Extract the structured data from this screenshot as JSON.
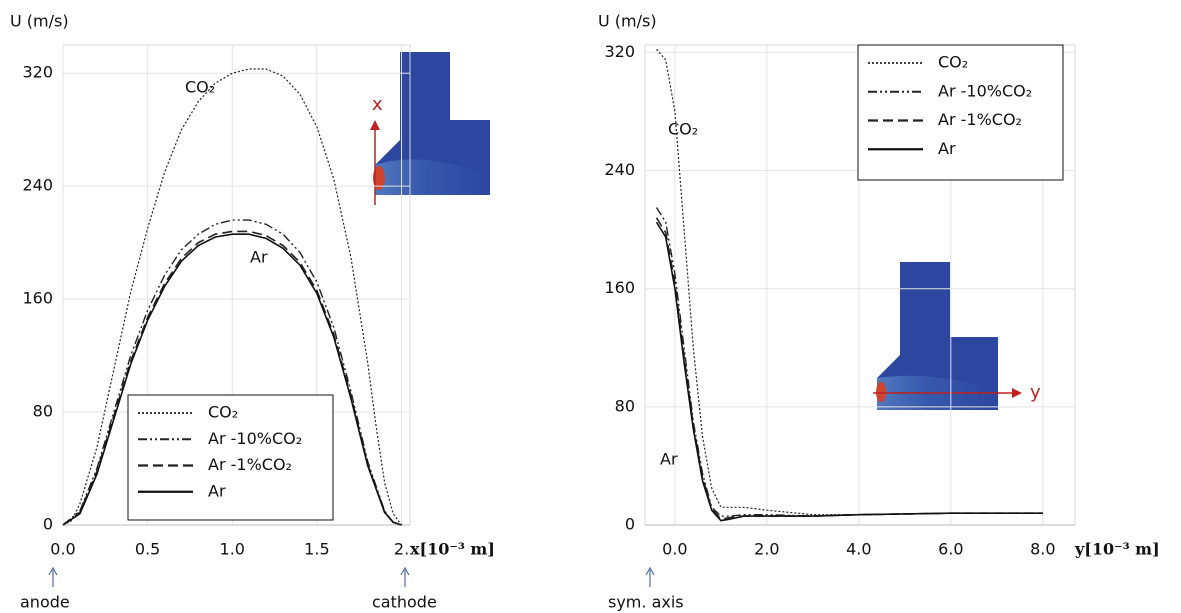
{
  "charts": [
    {
      "type": "line",
      "ylabel": "U (m/s)",
      "xlabel": "x[10⁻³ m]",
      "xlim": [
        0,
        2.05
      ],
      "ylim": [
        0,
        340
      ],
      "xticks": [
        {
          "value": 0,
          "label": "0.0"
        },
        0.5,
        {
          "value": 1,
          "label": "1.0"
        },
        1.5,
        {
          "value": 2,
          "label": "2."
        }
      ],
      "yticks": [
        0,
        80,
        160,
        240,
        320
      ],
      "grid": true,
      "legend": "lower center",
      "series": [
        {
          "name": "CO₂",
          "color": "#222222",
          "style": "dotted",
          "x": [
            0,
            0.05,
            0.1,
            0.2,
            0.3,
            0.4,
            0.5,
            0.6,
            0.7,
            0.8,
            0.9,
            1.0,
            1.1,
            1.2,
            1.3,
            1.4,
            1.5,
            1.6,
            1.7,
            1.8,
            1.85,
            1.9,
            1.95,
            2.0
          ],
          "values": [
            0,
            3,
            15,
            55,
            110,
            165,
            210,
            250,
            280,
            300,
            313,
            320,
            323,
            323,
            318,
            305,
            282,
            245,
            190,
            115,
            70,
            30,
            8,
            0
          ]
        },
        {
          "name": "Ar -10%CO₂",
          "color": "#222222",
          "style": "dashdot",
          "x": [
            0,
            0.1,
            0.2,
            0.3,
            0.4,
            0.5,
            0.6,
            0.7,
            0.8,
            0.9,
            1.0,
            1.1,
            1.2,
            1.3,
            1.4,
            1.5,
            1.6,
            1.7,
            1.8,
            1.9,
            1.95,
            2.0
          ],
          "values": [
            0,
            10,
            40,
            80,
            120,
            152,
            177,
            195,
            206,
            213,
            216,
            216,
            213,
            206,
            193,
            172,
            140,
            95,
            45,
            10,
            2,
            0
          ]
        },
        {
          "name": "Ar -1%CO₂",
          "color": "#222222",
          "style": "dashed",
          "x": [
            0,
            0.1,
            0.2,
            0.3,
            0.4,
            0.5,
            0.6,
            0.7,
            0.8,
            0.9,
            1.0,
            1.1,
            1.2,
            1.3,
            1.4,
            1.5,
            1.6,
            1.7,
            1.8,
            1.9,
            1.95,
            2.0
          ],
          "values": [
            0,
            9,
            38,
            77,
            116,
            147,
            171,
            189,
            200,
            206,
            208,
            208,
            205,
            198,
            186,
            166,
            135,
            92,
            43,
            9,
            2,
            0
          ]
        },
        {
          "name": "Ar",
          "color": "#111111",
          "style": "solid",
          "x": [
            0,
            0.1,
            0.2,
            0.3,
            0.4,
            0.5,
            0.6,
            0.7,
            0.8,
            0.9,
            1.0,
            1.1,
            1.2,
            1.3,
            1.4,
            1.5,
            1.6,
            1.7,
            1.8,
            1.9,
            1.95,
            2.0
          ],
          "values": [
            0,
            8,
            36,
            75,
            114,
            145,
            169,
            187,
            198,
            204,
            206,
            206,
            203,
            196,
            184,
            164,
            133,
            90,
            42,
            9,
            2,
            0
          ]
        }
      ],
      "annotations": [
        "CO₂",
        "Ar",
        "anode",
        "cathode"
      ],
      "inset_axis": "x"
    },
    {
      "type": "line",
      "ylabel": "U (m/s)",
      "xlabel": "y[10⁻³ m]",
      "xlim": [
        -0.65,
        8.7
      ],
      "ylim": [
        0,
        325
      ],
      "xticks": [
        {
          "value": 0,
          "label": "0.0"
        },
        {
          "value": 2,
          "label": "2.0"
        },
        {
          "value": 4,
          "label": "4.0"
        },
        {
          "value": 6,
          "label": "6.0"
        },
        {
          "value": 8,
          "label": "8.0"
        }
      ],
      "yticks": [
        0,
        80,
        160,
        240,
        320
      ],
      "grid": true,
      "legend": "upper right",
      "series": [
        {
          "name": "CO₂",
          "color": "#222222",
          "style": "dotted",
          "x": [
            -0.4,
            -0.2,
            0,
            0.2,
            0.4,
            0.6,
            0.8,
            1.0,
            1.5,
            2.0,
            3.0,
            4.0,
            6.0,
            8.0
          ],
          "values": [
            322,
            315,
            280,
            200,
            120,
            60,
            25,
            12,
            12,
            10,
            7,
            7,
            8,
            8
          ]
        },
        {
          "name": "Ar -10%CO₂",
          "color": "#222222",
          "style": "dashdot",
          "x": [
            -0.4,
            -0.2,
            0,
            0.2,
            0.4,
            0.6,
            0.8,
            1.0,
            1.2,
            1.5,
            2.0,
            3.0,
            4.0,
            6.0,
            8.0
          ],
          "values": [
            215,
            205,
            170,
            120,
            70,
            35,
            12,
            6,
            6,
            7,
            7,
            6,
            7,
            8,
            8
          ]
        },
        {
          "name": "Ar -1%CO₂",
          "color": "#222222",
          "style": "dashed",
          "x": [
            -0.4,
            -0.2,
            0,
            0.2,
            0.4,
            0.6,
            0.8,
            1.0,
            1.2,
            1.5,
            2.0,
            3.0,
            4.0,
            6.0,
            8.0
          ],
          "values": [
            208,
            198,
            164,
            114,
            67,
            32,
            11,
            4,
            5,
            6,
            6,
            6,
            7,
            8,
            8
          ]
        },
        {
          "name": "Ar",
          "color": "#111111",
          "style": "solid",
          "x": [
            -0.4,
            -0.2,
            0,
            0.2,
            0.4,
            0.6,
            0.8,
            1.0,
            1.2,
            1.5,
            2.0,
            3.0,
            4.0,
            6.0,
            8.0
          ],
          "values": [
            205,
            195,
            160,
            110,
            65,
            30,
            10,
            3,
            4,
            6,
            6,
            6,
            7,
            8,
            8
          ]
        }
      ],
      "annotations": [
        "CO₂",
        "Ar",
        "sym. axis"
      ],
      "inset_axis": "y"
    }
  ]
}
